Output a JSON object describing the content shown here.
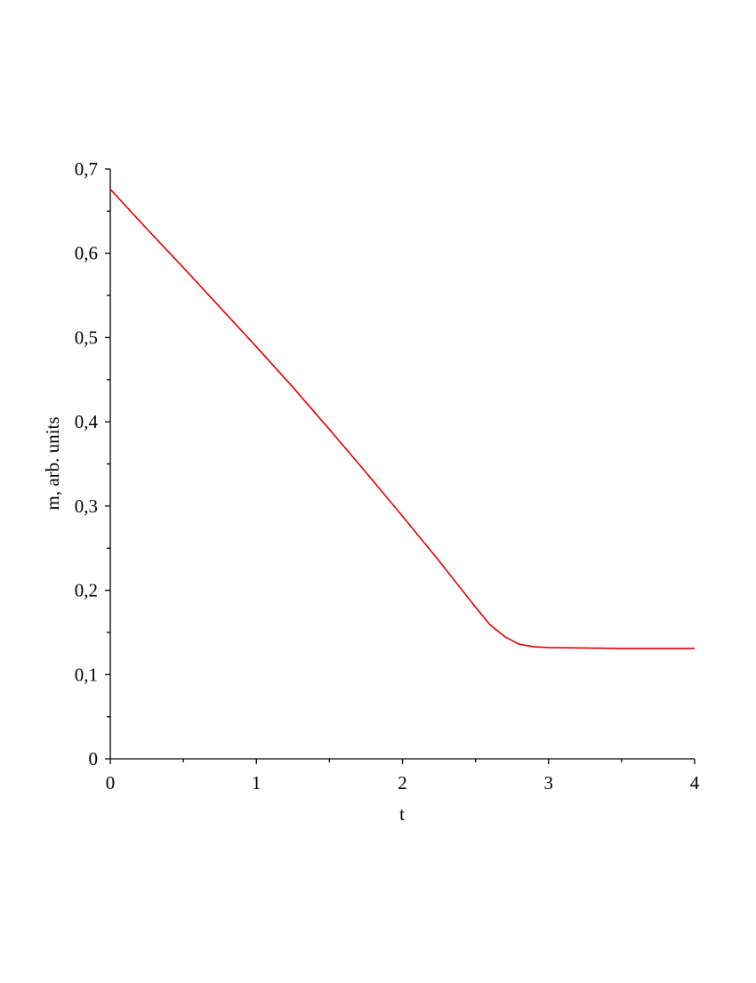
{
  "chart_data": {
    "type": "line",
    "xlabel": "t",
    "ylabel": "m, arb. units",
    "x": [
      0,
      0.25,
      0.5,
      0.75,
      1,
      1.25,
      1.5,
      1.75,
      2,
      2.25,
      2.5,
      2.6,
      2.7,
      2.8,
      2.9,
      3,
      3.5,
      4
    ],
    "series": [
      {
        "color": "#e00000",
        "values": [
          0.676,
          0.629,
          0.583,
          0.536,
          0.489,
          0.441,
          0.391,
          0.34,
          0.288,
          0.235,
          0.18,
          0.159,
          0.145,
          0.136,
          0.133,
          0.132,
          0.131,
          0.131
        ]
      }
    ],
    "xlim": [
      0,
      4
    ],
    "ylim": [
      0,
      0.7
    ],
    "xticks": [
      0,
      1,
      2,
      3,
      4
    ],
    "yticks": [
      0,
      {
        "value": 0.1,
        "label": "0,1"
      },
      {
        "value": 0.2,
        "label": "0,2"
      },
      {
        "value": 0.3,
        "label": "0,3"
      },
      {
        "value": 0.4,
        "label": "0,4"
      },
      {
        "value": 0.5,
        "label": "0,5"
      },
      {
        "value": 0.6,
        "label": "0,6"
      },
      {
        "value": 0.7,
        "label": "0,7"
      }
    ],
    "xminorticks": [
      0.5,
      1.5,
      2.5,
      3.5
    ],
    "yminorticks": [
      0.05,
      0.15,
      0.25,
      0.35,
      0.45,
      0.55,
      0.65
    ],
    "grid": false
  }
}
